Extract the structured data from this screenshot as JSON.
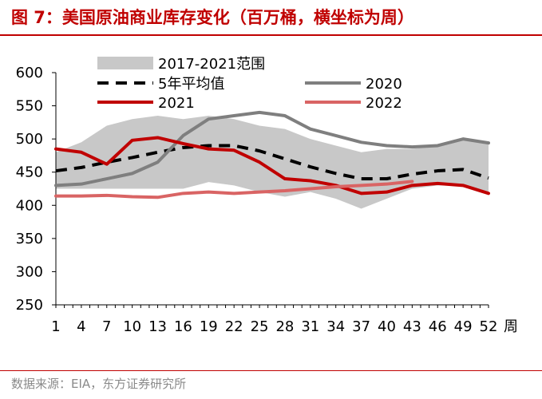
{
  "header": {
    "title": "图 7：美国原油商业库存变化（百万桶，横坐标为周）"
  },
  "footer": {
    "source": "数据来源：EIA，东方证券研究所"
  },
  "chart_data": {
    "type": "line",
    "xlabel": "周",
    "ylabel": "",
    "xlim": [
      1,
      52
    ],
    "ylim": [
      250,
      600
    ],
    "x_ticks": [
      1,
      4,
      7,
      10,
      13,
      16,
      19,
      22,
      25,
      28,
      31,
      34,
      37,
      40,
      43,
      46,
      49,
      52
    ],
    "y_ticks": [
      250,
      300,
      350,
      400,
      450,
      500,
      550,
      600
    ],
    "grid": false,
    "legend": "top",
    "band": {
      "name": "2017-2021范围",
      "color": "#c8c8c8",
      "x": [
        1,
        4,
        7,
        10,
        13,
        16,
        19,
        22,
        25,
        28,
        31,
        34,
        37,
        40,
        43,
        46,
        49,
        52
      ],
      "low": [
        425,
        425,
        425,
        425,
        425,
        425,
        435,
        430,
        420,
        413,
        420,
        410,
        395,
        410,
        425,
        430,
        430,
        420
      ],
      "high": [
        480,
        495,
        520,
        530,
        535,
        530,
        535,
        530,
        520,
        515,
        500,
        490,
        480,
        485,
        485,
        490,
        500,
        495
      ]
    },
    "series": [
      {
        "name": "5年平均值",
        "color": "#000000",
        "style": "dashed",
        "x": [
          1,
          4,
          7,
          10,
          13,
          16,
          19,
          22,
          25,
          28,
          31,
          34,
          37,
          40,
          43,
          46,
          49,
          52
        ],
        "y": [
          452,
          457,
          465,
          472,
          480,
          487,
          490,
          490,
          482,
          470,
          458,
          448,
          440,
          440,
          447,
          452,
          454,
          441
        ]
      },
      {
        "name": "2020",
        "color": "#7f7f7f",
        "style": "solid",
        "x": [
          1,
          4,
          7,
          10,
          13,
          16,
          19,
          22,
          25,
          28,
          31,
          34,
          37,
          40,
          43,
          46,
          49,
          52
        ],
        "y": [
          430,
          432,
          440,
          448,
          465,
          505,
          530,
          535,
          540,
          535,
          515,
          505,
          495,
          490,
          488,
          490,
          500,
          494
        ]
      },
      {
        "name": "2021",
        "color": "#c00000",
        "style": "solid",
        "x": [
          1,
          4,
          7,
          10,
          13,
          16,
          19,
          22,
          25,
          28,
          31,
          34,
          37,
          40,
          43,
          46,
          49,
          52
        ],
        "y": [
          485,
          480,
          462,
          498,
          502,
          493,
          485,
          483,
          465,
          440,
          437,
          430,
          418,
          420,
          430,
          433,
          430,
          418
        ]
      },
      {
        "name": "2022",
        "color": "#d96464",
        "style": "solid",
        "x": [
          1,
          4,
          7,
          10,
          13,
          16,
          19,
          22,
          25,
          28,
          31,
          34,
          37,
          40,
          43
        ],
        "y": [
          414,
          414,
          415,
          413,
          412,
          418,
          420,
          418,
          420,
          422,
          425,
          428,
          430,
          432,
          436
        ]
      }
    ]
  }
}
